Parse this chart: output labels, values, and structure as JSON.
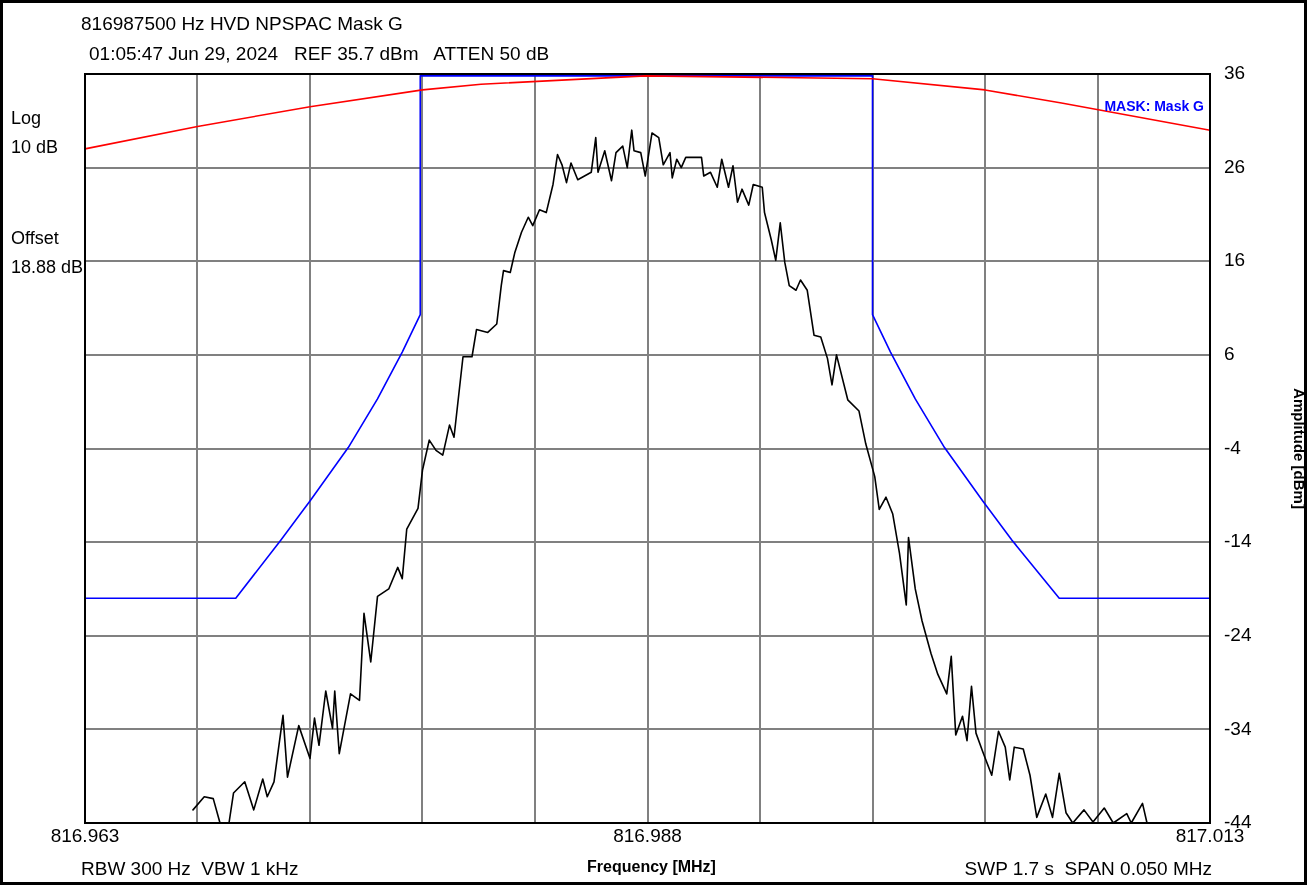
{
  "chart_data": {
    "type": "line",
    "title": "816987500 Hz HVD NPSPAC Mask G",
    "subtitle": "01:05:47 Jun 29, 2024   REF 35.7 dBm   ATTEN 50 dB",
    "xlabel": "Frequency [MHz]",
    "ylabel": "Amplitude [dBm]",
    "annotations": [
      "Log\n10 dB",
      "Offset\n18.88 dB",
      "RBW 300 Hz  VBW 1 kHz",
      "SWP 1.7 s  SPAN 0.050 MHz"
    ],
    "xlim": [
      816.963,
      817.013
    ],
    "ylim": [
      -44,
      36
    ],
    "xticks": [
      816.963,
      {
        "value": 816.968,
        "label": null
      },
      {
        "value": 816.973,
        "label": null
      },
      {
        "value": 816.978,
        "label": null
      },
      {
        "value": 816.983,
        "label": null
      },
      816.988,
      {
        "value": 816.993,
        "label": null
      },
      {
        "value": 816.998,
        "label": null
      },
      {
        "value": 817.003,
        "label": null
      },
      {
        "value": 817.008,
        "label": null
      },
      817.013
    ],
    "yticks": [
      -44,
      -34,
      -24,
      -14,
      -4,
      6,
      16,
      26,
      36
    ],
    "grid": true,
    "legend": false,
    "series": [
      {
        "color": "#ff0000",
        "x": [
          816.963,
          816.968,
          816.973,
          816.978,
          816.9806,
          816.9879,
          816.998,
          817.003,
          817.0064,
          817.013
        ],
        "values": [
          28.0,
          30.4,
          32.5,
          34.3,
          34.9,
          35.8,
          35.5,
          34.3,
          32.9,
          30.0
        ]
      },
      {
        "name": "MASK: Mask G",
        "color": "#0000ff",
        "x": [
          816.963,
          816.9697,
          816.9717,
          816.973,
          816.9747,
          816.976,
          816.9771,
          816.9779,
          816.9779,
          816.998,
          816.998,
          816.9988,
          816.9999,
          817.0012,
          817.0029,
          817.0042,
          817.0063,
          817.013
        ],
        "values": [
          -20,
          -20,
          -13.8,
          -9.6,
          -3.9,
          1.3,
          6.3,
          10.3,
          35.8,
          35.8,
          10.3,
          6.3,
          1.3,
          -3.9,
          -9.6,
          -13.8,
          -20,
          -20
        ]
      },
      {
        "color": "#000000",
        "x": [
          816.9678,
          816.9683,
          816.9687,
          816.969,
          816.9694,
          816.9696,
          816.9701,
          816.9705,
          816.9709,
          816.9711,
          816.9714,
          816.9718,
          816.972,
          816.9725,
          816.973,
          816.9732,
          816.9734,
          816.9737,
          816.974,
          816.9741,
          816.9743,
          816.9748,
          816.9752,
          816.9754,
          816.9757,
          816.976,
          816.9765,
          816.9769,
          816.9771,
          816.9773,
          816.9778,
          816.978,
          816.9783,
          816.9786,
          816.9789,
          816.9792,
          816.9794,
          816.9798,
          816.9802,
          816.9804,
          816.9809,
          816.9813,
          816.9815,
          816.9816,
          816.9819,
          816.9821,
          816.9824,
          816.9827,
          816.9829,
          816.9832,
          816.9835,
          816.9838,
          816.984,
          816.9842,
          816.9844,
          816.9846,
          816.9849,
          816.9855,
          816.9857,
          816.9858,
          816.9861,
          816.9864,
          816.9866,
          816.9869,
          816.9871,
          816.9873,
          816.9874,
          816.9877,
          816.9879,
          816.9882,
          816.9885,
          816.9887,
          816.989,
          816.9891,
          816.9893,
          816.9895,
          816.9897,
          816.9904,
          816.9905,
          816.9908,
          816.9911,
          816.9913,
          816.9916,
          816.9918,
          816.992,
          816.9922,
          816.9925,
          816.9927,
          816.9931,
          816.9932,
          816.9935,
          816.9937,
          816.9939,
          816.9941,
          816.9943,
          816.9946,
          816.9948,
          816.9951,
          816.9954,
          816.9957,
          816.996,
          816.9962,
          816.9964,
          816.9969,
          816.9974,
          816.9977,
          816.9981,
          816.9983,
          816.9986,
          816.9989,
          816.9992,
          816.9995,
          816.9996,
          816.9999,
          817.0002,
          817.0006,
          817.0009,
          817.0013,
          817.0015,
          817.0017,
          817.002,
          817.0022,
          817.0024,
          817.0026,
          817.0029,
          817.0033,
          817.0036,
          817.0039,
          817.0041,
          817.0043,
          817.0047,
          817.005,
          817.0053,
          817.0057,
          817.006,
          817.0063,
          817.0066,
          817.0069,
          817.0074,
          817.0078,
          817.0083,
          817.0087,
          817.0093,
          817.0095,
          817.01,
          817.0102
        ],
        "values": [
          -42.6,
          -41.2,
          -41.4,
          -44,
          -44,
          -40.8,
          -39.6,
          -42.6,
          -39.3,
          -41.2,
          -39.6,
          -32.5,
          -39.1,
          -33.6,
          -37.1,
          -32.8,
          -35.7,
          -29.9,
          -33.9,
          -29.9,
          -36.6,
          -30.2,
          -30.9,
          -21.6,
          -26.8,
          -19.8,
          -19,
          -16.7,
          -17.9,
          -12.6,
          -10.4,
          -6.3,
          -3.1,
          -4.2,
          -4.7,
          -1.5,
          -2.8,
          5.8,
          5.8,
          8.7,
          8.4,
          9.3,
          13.4,
          15,
          14.8,
          16.9,
          19.1,
          20.7,
          19.8,
          21.5,
          21.2,
          24.2,
          27.4,
          26.3,
          24.4,
          26.5,
          24.7,
          25.5,
          29.2,
          25.5,
          27.8,
          24.6,
          27.6,
          28.3,
          26,
          30,
          27.8,
          27.6,
          25.1,
          29.7,
          29.2,
          26.3,
          27.6,
          24.9,
          26.9,
          26,
          27.1,
          27.1,
          25.1,
          25.5,
          23.9,
          26.9,
          23.9,
          26.2,
          22.3,
          23.7,
          22,
          24.2,
          23.9,
          21.2,
          18.3,
          16.1,
          20.1,
          15.9,
          13.4,
          12.9,
          14,
          12.9,
          8.1,
          7.9,
          5.6,
          2.8,
          6,
          1.2,
          0,
          -3.5,
          -7,
          -10.5,
          -9.2,
          -11,
          -15.2,
          -20.7,
          -13.5,
          -19,
          -22.4,
          -25.9,
          -28.1,
          -30.2,
          -26.2,
          -34.6,
          -32.6,
          -35.2,
          -29.4,
          -34.4,
          -36.4,
          -38.9,
          -34.2,
          -35.9,
          -39.4,
          -35.9,
          -36.1,
          -38.9,
          -43.4,
          -40.9,
          -43.4,
          -38.7,
          -42.9,
          -44,
          -42.6,
          -43.9,
          -42.4,
          -44,
          -43,
          -44,
          -41.9,
          -44
        ]
      }
    ]
  }
}
